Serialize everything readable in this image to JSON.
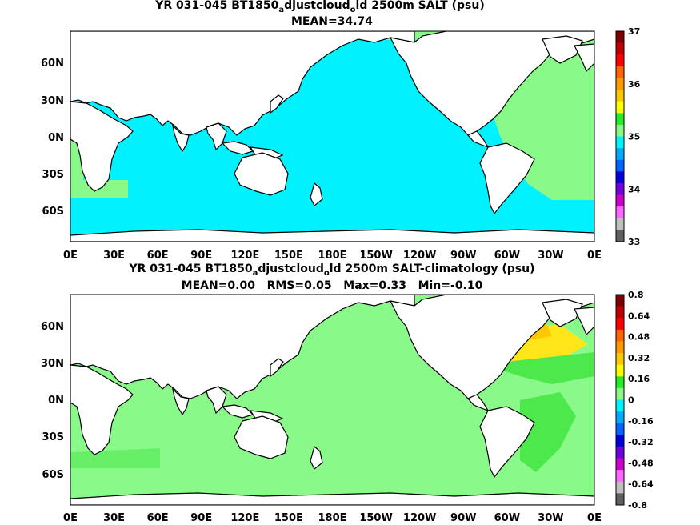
{
  "colors": {
    "cyan": "#00f2ff",
    "light_green": "#89f989",
    "mid_green": "#4ce84c",
    "bright_green": "#25ed25",
    "yellow": "#ffe61a",
    "gold": "#ffc800",
    "land": "#ffffff",
    "coast": "#000000"
  },
  "panel_top": {
    "title_line1": "YR 031-045 BT1850",
    "title_sub1": "a",
    "title_mid": "djustcloud",
    "title_sub2": "o",
    "title_end": "ld 2500m SALT (psu)",
    "title_line2": "MEAN=34.74",
    "colorbar_labels": [
      "37",
      "36",
      "35",
      "34",
      "33"
    ],
    "colorbar_colors": [
      "#7f0000",
      "#c00000",
      "#ff0000",
      "#ff6600",
      "#ff9900",
      "#ffc800",
      "#ffff00",
      "#25ed25",
      "#89f989",
      "#00f2ff",
      "#00aaff",
      "#0066ff",
      "#0000dd",
      "#7000dd",
      "#cc00cc",
      "#ff66ff",
      "#c0c0c0",
      "#606060"
    ]
  },
  "panel_bottom": {
    "title_line1": "YR 031-045 BT1850",
    "title_sub1": "a",
    "title_mid": "djustcloud",
    "title_sub2": "o",
    "title_end": "ld 2500m SALT-climatology (psu)",
    "title_line2": "MEAN=0.00   RMS=0.05   Max=0.33   Min=-0.10",
    "colorbar_labels": [
      "0.8",
      "0.64",
      "0.48",
      "0.32",
      "0.16",
      "0",
      "-0.16",
      "-0.32",
      "-0.48",
      "-0.64",
      "-0.8"
    ],
    "colorbar_colors": [
      "#7f0000",
      "#c00000",
      "#ff0000",
      "#ff6600",
      "#ff9900",
      "#ffc800",
      "#ffff00",
      "#25ed25",
      "#89f989",
      "#00f2ff",
      "#00aaff",
      "#0066ff",
      "#0000dd",
      "#7000dd",
      "#cc00cc",
      "#ff66ff",
      "#c0c0c0",
      "#606060"
    ]
  },
  "x_ticks": [
    "0E",
    "30E",
    "60E",
    "90E",
    "120E",
    "150E",
    "180E",
    "150W",
    "120W",
    "90W",
    "60W",
    "30W",
    "0E"
  ],
  "y_ticks": [
    "60N",
    "30N",
    "0N",
    "30S",
    "60S"
  ]
}
